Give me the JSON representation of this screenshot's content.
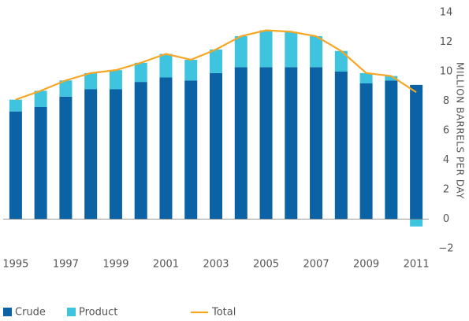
{
  "chart_data": {
    "type": "bar",
    "categories": [
      "1995",
      null,
      "1997",
      null,
      "1999",
      null,
      "2001",
      null,
      "2003",
      null,
      "2005",
      null,
      "2007",
      null,
      "2009",
      null,
      "2011"
    ],
    "series": [
      {
        "name": "Crude",
        "color": "#0b62a4",
        "values": [
          7.3,
          7.6,
          8.3,
          8.8,
          8.8,
          9.3,
          9.6,
          9.4,
          9.9,
          10.3,
          10.3,
          10.3,
          10.3,
          10.0,
          9.2,
          9.4,
          9.1
        ]
      },
      {
        "name": "Product",
        "color": "#3fc4e0",
        "values": [
          0.8,
          1.1,
          1.1,
          1.1,
          1.3,
          1.3,
          1.6,
          1.4,
          1.6,
          2.1,
          2.5,
          2.4,
          2.1,
          1.4,
          0.7,
          0.3,
          -0.5
        ]
      },
      {
        "name": "Total",
        "color": "#f5a623",
        "type": "line",
        "values": [
          8.1,
          8.7,
          9.4,
          9.9,
          10.1,
          10.6,
          11.2,
          10.8,
          11.5,
          12.4,
          12.8,
          12.7,
          12.4,
          11.4,
          9.9,
          9.7,
          8.6
        ]
      }
    ],
    "y_axis_label": "MILLION BARRELS PER DAY",
    "ylim": [
      -2,
      14
    ],
    "yticks": [
      {
        "value": -2,
        "label": "−2"
      },
      0,
      2,
      4,
      6,
      8,
      10,
      12,
      14
    ],
    "grid": false,
    "legend": "bottom"
  }
}
